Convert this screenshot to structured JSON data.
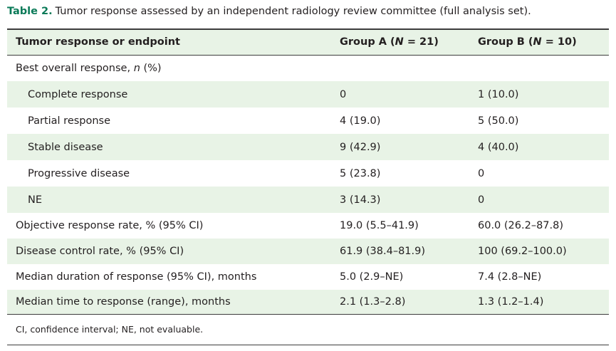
{
  "caption": {
    "label": "Table 2.",
    "text": "Tumor response assessed by an independent radiology review committee (full analysis set)."
  },
  "header": {
    "col1": "Tumor response or endpoint",
    "col2_pre": "Group A (",
    "col2_n": "N",
    "col2_post": " = 21)",
    "col3_pre": "Group B (",
    "col3_n": "N",
    "col3_post": " = 10)"
  },
  "rows": [
    {
      "label_pre": "Best overall response, ",
      "label_it": "n",
      "label_post": " (%)",
      "a": "",
      "b": ""
    },
    {
      "label": "Complete response",
      "a": "0",
      "b": "1 (10.0)"
    },
    {
      "label": "Partial response",
      "a": "4 (19.0)",
      "b": "5 (50.0)"
    },
    {
      "label": "Stable disease",
      "a": "9 (42.9)",
      "b": "4 (40.0)"
    },
    {
      "label": "Progressive disease",
      "a": "5 (23.8)",
      "b": "0"
    },
    {
      "label": "NE",
      "a": "3 (14.3)",
      "b": "0"
    },
    {
      "label": "Objective response rate, % (95% CI)",
      "a": "19.0 (5.5–41.9)",
      "b": "60.0 (26.2–87.8)"
    },
    {
      "label": "Disease control rate, % (95% CI)",
      "a": "61.9 (38.4–81.9)",
      "b": "100 (69.2–100.0)"
    },
    {
      "label": "Median duration of response (95% CI), months",
      "a": "5.0 (2.9–NE)",
      "b": "7.4 (2.8–NE)"
    },
    {
      "label": "Median time to response (range), months",
      "a": "2.1 (1.3–2.8)",
      "b": "1.3 (1.2–1.4)"
    }
  ],
  "footnote": "CI, confidence interval; NE, not evaluable."
}
